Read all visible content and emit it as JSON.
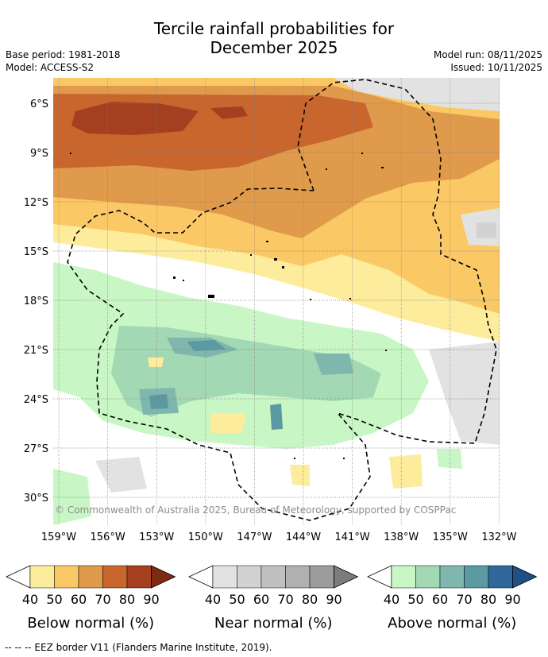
{
  "title_line1": "Tercile rainfall probabilities for",
  "title_line2": "December 2025",
  "base_period": "Base period: 1981-2018",
  "model": "Model: ACCESS-S2",
  "model_run": "Model run: 08/11/2025",
  "issued": "Issued: 10/11/2025",
  "copyright": "© Commonwealth of Australia 2025, Bureau of Meteorology, supported by COSPPac",
  "footnote": "--  --  -- EEZ border V11 (Flanders Marine Institute, 2019).",
  "chart_data": {
    "type": "heatmap",
    "x_ticks": [
      "159°W",
      "156°W",
      "153°W",
      "150°W",
      "147°W",
      "144°W",
      "141°W",
      "138°W",
      "135°W",
      "132°W"
    ],
    "y_ticks": [
      "6°S",
      "9°S",
      "12°S",
      "15°S",
      "18°S",
      "21°S",
      "24°S",
      "27°S",
      "30°S"
    ],
    "xlim": [
      -159.4,
      -131.6
    ],
    "ylim": [
      -31.5,
      -4.5
    ],
    "colorbars": [
      {
        "label": "Below normal (%)",
        "ticks": [
          "40",
          "50",
          "60",
          "70",
          "80",
          "90"
        ],
        "colors": [
          "#fdec9c",
          "#fbc866",
          "#e09a4c",
          "#c8662e",
          "#a4401f",
          "#7e2a14"
        ]
      },
      {
        "label": "Near normal (%)",
        "ticks": [
          "40",
          "50",
          "60",
          "70",
          "80",
          "90"
        ],
        "colors": [
          "#e2e2e2",
          "#d2d2d2",
          "#c0c0c0",
          "#b0b0b0",
          "#9c9c9c",
          "#7c7c7c"
        ]
      },
      {
        "label": "Above normal (%)",
        "ticks": [
          "40",
          "50",
          "60",
          "70",
          "80",
          "90"
        ],
        "colors": [
          "#c8f7c5",
          "#a2d8b3",
          "#7fb7ae",
          "#5b9aa3",
          "#30689c",
          "#1e4f86"
        ]
      }
    ]
  }
}
